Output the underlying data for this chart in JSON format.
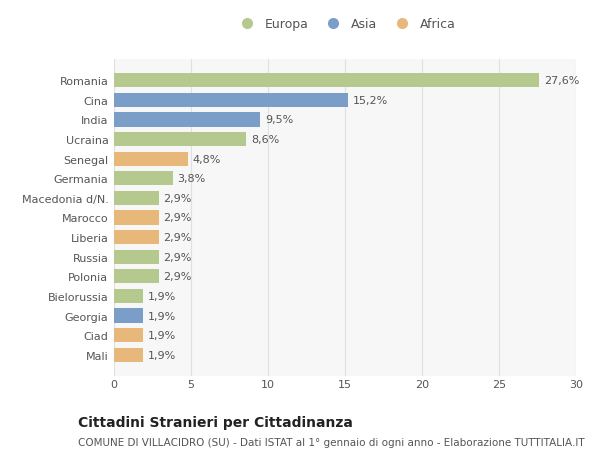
{
  "countries": [
    "Romania",
    "Cina",
    "India",
    "Ucraina",
    "Senegal",
    "Germania",
    "Macedonia d/N.",
    "Marocco",
    "Liberia",
    "Russia",
    "Polonia",
    "Bielorussia",
    "Georgia",
    "Ciad",
    "Mali"
  ],
  "values": [
    27.6,
    15.2,
    9.5,
    8.6,
    4.8,
    3.8,
    2.9,
    2.9,
    2.9,
    2.9,
    2.9,
    1.9,
    1.9,
    1.9,
    1.9
  ],
  "labels": [
    "27,6%",
    "15,2%",
    "9,5%",
    "8,6%",
    "4,8%",
    "3,8%",
    "2,9%",
    "2,9%",
    "2,9%",
    "2,9%",
    "2,9%",
    "1,9%",
    "1,9%",
    "1,9%",
    "1,9%"
  ],
  "continents": [
    "Europa",
    "Asia",
    "Asia",
    "Europa",
    "Africa",
    "Europa",
    "Europa",
    "Africa",
    "Africa",
    "Europa",
    "Europa",
    "Europa",
    "Asia",
    "Africa",
    "Africa"
  ],
  "colors": {
    "Europa": "#b5c98e",
    "Asia": "#7b9ec9",
    "Africa": "#e8b87a"
  },
  "xlim": [
    0,
    30
  ],
  "xticks": [
    0,
    5,
    10,
    15,
    20,
    25,
    30
  ],
  "background_color": "#ffffff",
  "plot_background": "#f7f7f7",
  "grid_color": "#e0e0e0",
  "title": "Cittadini Stranieri per Cittadinanza",
  "subtitle": "COMUNE DI VILLACIDRO (SU) - Dati ISTAT al 1° gennaio di ogni anno - Elaborazione TUTTITALIA.IT",
  "bar_height": 0.72,
  "label_fontsize": 8,
  "tick_fontsize": 8,
  "title_fontsize": 10,
  "subtitle_fontsize": 7.5
}
